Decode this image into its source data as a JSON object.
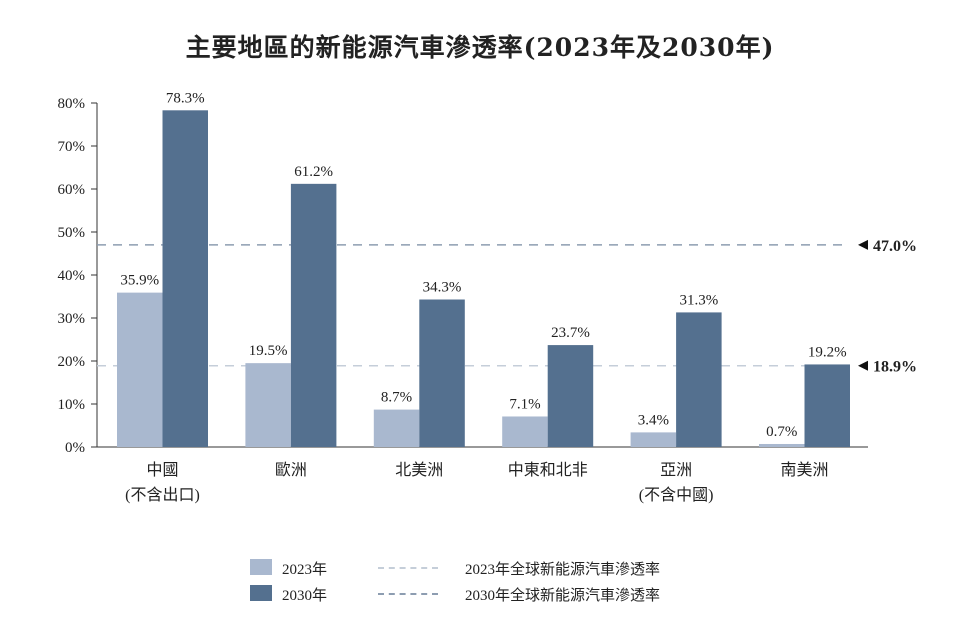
{
  "chart_data": {
    "type": "bar",
    "title": "主要地區的新能源汽車滲透率(2023年及2030年)",
    "xlabel": "",
    "ylabel": "",
    "ylim": [
      0,
      80
    ],
    "yticks": [
      "0%",
      "10%",
      "20%",
      "30%",
      "40%",
      "50%",
      "60%",
      "70%",
      "80%"
    ],
    "grid": false,
    "categories": [
      [
        "中國",
        "(不含出口)"
      ],
      [
        "歐洲",
        ""
      ],
      [
        "北美洲",
        ""
      ],
      [
        "中東和北非",
        ""
      ],
      [
        "亞洲",
        "(不含中國)"
      ],
      [
        "南美洲",
        ""
      ]
    ],
    "series": [
      {
        "name": "2023年",
        "color": "#a9b8cf",
        "values": [
          35.9,
          19.5,
          8.7,
          7.1,
          3.4,
          0.7
        ],
        "labels": [
          "35.9%",
          "19.5%",
          "8.7%",
          "7.1%",
          "3.4%",
          "0.7%"
        ]
      },
      {
        "name": "2030年",
        "color": "#54708f",
        "values": [
          78.3,
          61.2,
          34.3,
          23.7,
          31.3,
          19.2
        ],
        "labels": [
          "78.3%",
          "61.2%",
          "34.3%",
          "23.7%",
          "31.3%",
          "19.2%"
        ]
      }
    ],
    "reference_lines": [
      {
        "name": "2023年全球新能源汽車滲透率",
        "value": 18.9,
        "label": "18.9%",
        "color": "#c5ced9"
      },
      {
        "name": "2030年全球新能源汽車滲透率",
        "value": 47.0,
        "label": "47.0%",
        "color": "#8d9db1"
      }
    ],
    "legend_position": "bottom"
  }
}
